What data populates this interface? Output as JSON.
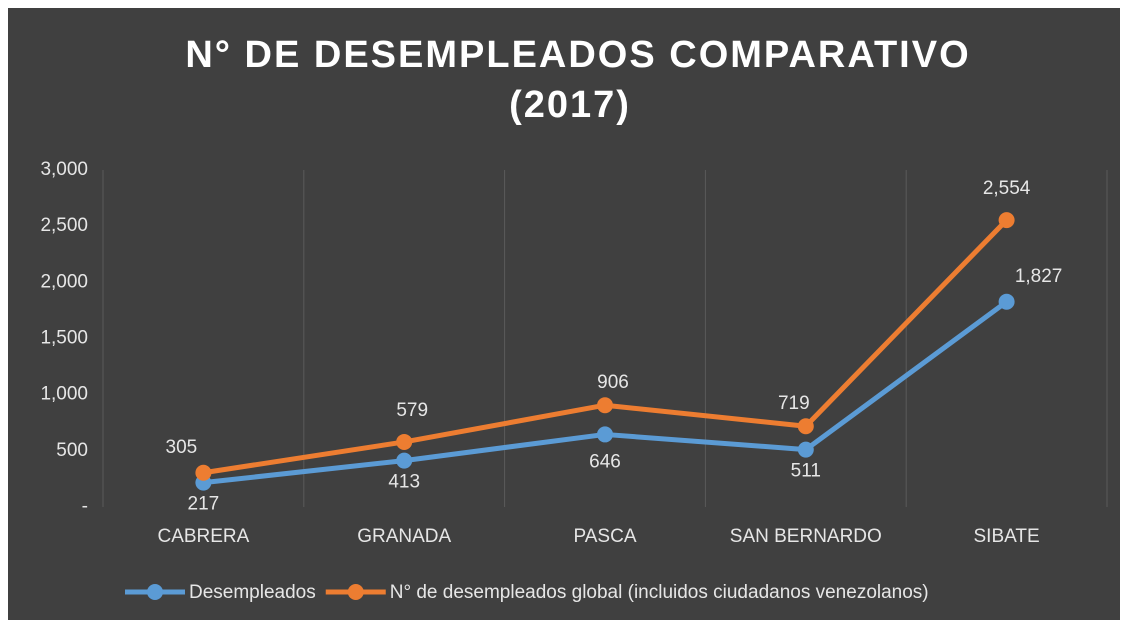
{
  "chart_data": {
    "type": "line",
    "title": [
      "N° DE DESEMPLEADOS COMPARATIVO",
      "(2017)"
    ],
    "categories": [
      "CABRERA",
      "GRANADA",
      "PASCA",
      "SAN BERNARDO",
      "SIBATE"
    ],
    "series": [
      {
        "name": "Desempleados",
        "color": "#5b9bd5",
        "values": [
          217,
          413,
          646,
          511,
          1827
        ],
        "value_labels": [
          "217",
          "413",
          "646",
          "511",
          "1,827"
        ]
      },
      {
        "name": "N° de desempleados global (incluidos ciudadanos venezolanos)",
        "color": "#ed7d31",
        "values": [
          305,
          579,
          906,
          719,
          2554
        ],
        "value_labels": [
          "305",
          "579",
          "906",
          "719",
          "2,554"
        ]
      }
    ],
    "ylim": [
      0,
      3000
    ],
    "yticks": [
      {
        "value": 0,
        "label": "-"
      },
      500,
      {
        "value": 1000,
        "label": "1,000"
      },
      {
        "value": 1500,
        "label": "1,500"
      },
      {
        "value": 2000,
        "label": "2,000"
      },
      {
        "value": 2500,
        "label": "2,500"
      },
      {
        "value": 3000,
        "label": "3,000"
      }
    ],
    "legend": "bottom"
  }
}
